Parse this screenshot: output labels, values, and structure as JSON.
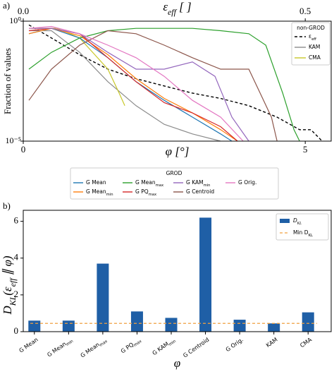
{
  "chart_data": [
    {
      "type": "line",
      "label": "a)",
      "ylabel": "Fraction of values",
      "xlabel": [
        {
          "t": "φ"
        },
        {
          "t": " [°]"
        }
      ],
      "x2label": [
        {
          "t": "ε"
        },
        {
          "t": "eff",
          "sub": true
        },
        {
          "t": " [ ]"
        }
      ],
      "xlim": [
        0,
        5.46
      ],
      "xticks": [
        0,
        5
      ],
      "x2lim": [
        0,
        0.546
      ],
      "x2ticks": [
        {
          "value": 0,
          "label": "0.0"
        },
        0.5
      ],
      "ylim": [
        1e-05,
        1
      ],
      "yscale": "log",
      "yticks": [
        {
          "value": 1,
          "label": "10⁰"
        },
        {
          "value": 1e-05,
          "label": "10⁻⁵"
        }
      ],
      "series_groups": [
        {
          "title": "non-GROD",
          "series": [
            {
              "name": [
                {
                  "t": "ε"
                },
                {
                  "t": "eff",
                  "sub": true
                }
              ],
              "color": "#000000",
              "dash": true,
              "x": [
                0.1,
                0.5,
                1,
                1.5,
                2,
                2.5,
                3,
                3.5,
                4,
                4.5,
                4.9,
                5.1,
                5.3
              ],
              "values": [
                0.7,
                0.2,
                0.04,
                0.01,
                0.004,
                0.002,
                0.001,
                0.0006,
                0.0003,
                0.0001,
                3e-05,
                3e-05,
                1e-05
              ]
            },
            {
              "name": [
                {
                  "t": "KAM"
                }
              ],
              "color": "#8c8c8c",
              "x": [
                0.1,
                0.5,
                1,
                1.5,
                2,
                2.5,
                3,
                3.5
              ],
              "values": [
                0.4,
                0.4,
                0.05,
                0.003,
                0.0003,
                5e-05,
                2e-05,
                1e-05
              ]
            },
            {
              "name": [
                {
                  "t": "CMA"
                }
              ],
              "color": "#c8c82a",
              "x": [
                0.1,
                0.6,
                1,
                1.5,
                1.7,
                1.8
              ],
              "values": [
                0.5,
                0.5,
                0.2,
                0.01,
                0.001,
                0.0003
              ]
            }
          ]
        },
        {
          "title": "GROD",
          "series": [
            {
              "name": [
                {
                  "t": "G Mean"
                }
              ],
              "color": "#1f77b4",
              "x": [
                0.1,
                0.5,
                1,
                1.5,
                2,
                2.5,
                3,
                3.5,
                3.7
              ],
              "values": [
                0.3,
                0.5,
                0.2,
                0.03,
                0.003,
                0.0005,
                0.0001,
                2e-05,
                1e-05
              ]
            },
            {
              "name": [
                {
                  "t": "G Mean"
                },
                {
                  "t": "min",
                  "sub": true
                }
              ],
              "color": "#ff7f0e",
              "x": [
                0.1,
                0.5,
                1,
                1.5,
                2,
                2.5,
                3,
                3.5,
                3.8
              ],
              "values": [
                0.3,
                0.5,
                0.25,
                0.04,
                0.004,
                0.0006,
                0.00015,
                3e-05,
                1e-05
              ]
            },
            {
              "name": [
                {
                  "t": "G Mean"
                },
                {
                  "t": "max",
                  "sub": true
                }
              ],
              "color": "#2ca02c",
              "x": [
                0.1,
                0.5,
                1,
                1.5,
                2,
                2.5,
                3,
                3.5,
                4,
                4.3,
                4.6,
                4.8,
                4.9
              ],
              "values": [
                0.01,
                0.05,
                0.2,
                0.4,
                0.5,
                0.5,
                0.5,
                0.4,
                0.3,
                0.1,
                0.001,
                3e-05,
                1e-05
              ]
            },
            {
              "name": [
                {
                  "t": "G PQ"
                },
                {
                  "t": "max",
                  "sub": true
                }
              ],
              "color": "#d62728",
              "x": [
                0.1,
                0.5,
                1,
                1.5,
                2,
                2.5,
                3,
                3.5,
                3.8
              ],
              "values": [
                0.4,
                0.5,
                0.3,
                0.03,
                0.003,
                0.0004,
                0.00015,
                4e-05,
                1e-05
              ]
            },
            {
              "name": [
                {
                  "t": "G KAM"
                },
                {
                  "t": "min",
                  "sub": true
                }
              ],
              "color": "#9467bd",
              "x": [
                0.1,
                0.5,
                1,
                1.5,
                2,
                2.5,
                3,
                3.4,
                3.7,
                4
              ],
              "values": [
                0.5,
                0.5,
                0.3,
                0.05,
                0.01,
                0.01,
                0.02,
                0.005,
                0.0001,
                1e-05
              ]
            },
            {
              "name": [
                {
                  "t": "G Centroid"
                }
              ],
              "color": "#8c564b",
              "x": [
                0.1,
                0.5,
                1,
                1.5,
                2,
                2.5,
                3,
                3.5,
                4,
                4.2,
                4.4,
                4.5
              ],
              "values": [
                0.0005,
                0.01,
                0.1,
                0.4,
                0.3,
                0.1,
                0.03,
                0.01,
                0.01,
                0.001,
                0.0001,
                1e-05
              ]
            },
            {
              "name": [
                {
                  "t": "G Orig."
                }
              ],
              "color": "#e377c2",
              "x": [
                0.1,
                0.5,
                1,
                1.5,
                2,
                2.5,
                3,
                3.5,
                3.9
              ],
              "values": [
                0.5,
                0.6,
                0.3,
                0.1,
                0.03,
                0.005,
                0.0005,
                0.0001,
                1e-05
              ]
            }
          ]
        }
      ]
    },
    {
      "type": "bar",
      "label": "b)",
      "ylabel": [
        {
          "t": "D"
        },
        {
          "t": "KL",
          "sub": true
        },
        {
          "t": "(ε"
        },
        {
          "t": "eff",
          "sub": true
        },
        {
          "t": " ∥ φ)"
        }
      ],
      "xlabel": "φ",
      "categories": [
        [
          {
            "t": "G Mean"
          }
        ],
        [
          {
            "t": "G Mean"
          },
          {
            "t": "min",
            "sub": true
          }
        ],
        [
          {
            "t": "G Mean"
          },
          {
            "t": "max",
            "sub": true
          }
        ],
        [
          {
            "t": "G PQ"
          },
          {
            "t": "max",
            "sub": true
          }
        ],
        [
          {
            "t": "G KAM"
          },
          {
            "t": "min",
            "sub": true
          }
        ],
        [
          {
            "t": "G Centroid"
          }
        ],
        [
          {
            "t": "G Orig."
          }
        ],
        [
          {
            "t": "KAM"
          }
        ],
        [
          {
            "t": "CMA"
          }
        ]
      ],
      "series_name": [
        {
          "t": "D"
        },
        {
          "t": "KL",
          "sub": true
        }
      ],
      "values": [
        0.6,
        0.6,
        3.7,
        1.1,
        0.75,
        6.2,
        0.65,
        0.45,
        1.05
      ],
      "color": "#1f5fa6",
      "hline": {
        "name": [
          {
            "t": "Min D"
          },
          {
            "t": "KL",
            "sub": true
          }
        ],
        "value": 0.45,
        "color": "#f0a040"
      },
      "ylim": [
        0,
        6.6
      ],
      "yticks": [
        0,
        2,
        4,
        6
      ],
      "legend": "upper right"
    }
  ]
}
